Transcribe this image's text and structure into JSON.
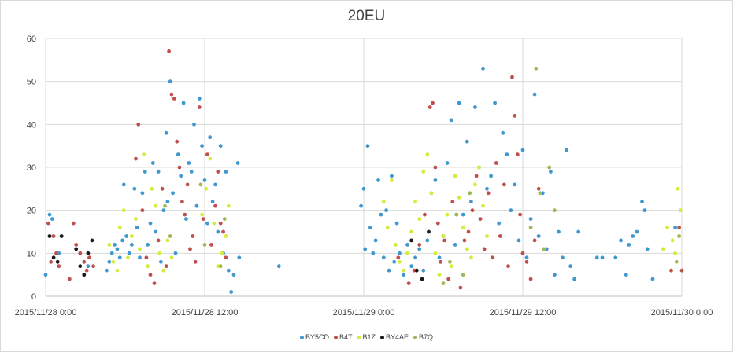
{
  "chart_data": {
    "type": "scatter",
    "title": "20EU",
    "xlabel": "",
    "ylabel": "",
    "ylim": [
      0,
      60
    ],
    "yticks": [
      "0",
      "10",
      "20",
      "30",
      "40",
      "50",
      "60"
    ],
    "xlim": [
      "2015/11/28 0:00",
      "2015/11/30 0:00"
    ],
    "xtick_labels": [
      "2015/11/28 0:00",
      "2015/11/28 12:00",
      "2015/11/29 0:00",
      "2015/11/29 12:00",
      "2015/11/30 0:00"
    ],
    "grid": true,
    "legend_position": "bottom",
    "series": [
      {
        "name": "BY5CD",
        "color": "#4198cf",
        "x_unit": "hours since 2015/11/28 0:00",
        "points": [
          [
            0.0,
            5
          ],
          [
            0.3,
            19
          ],
          [
            0.5,
            18
          ],
          [
            1.0,
            10
          ],
          [
            3.2,
            7
          ],
          [
            4.6,
            6
          ],
          [
            4.8,
            8
          ],
          [
            5.0,
            10
          ],
          [
            5.2,
            12
          ],
          [
            5.4,
            11
          ],
          [
            5.6,
            9
          ],
          [
            5.8,
            13
          ],
          [
            5.9,
            26
          ],
          [
            6.1,
            14
          ],
          [
            6.3,
            10
          ],
          [
            6.5,
            12
          ],
          [
            6.7,
            25
          ],
          [
            6.9,
            16
          ],
          [
            7.1,
            9
          ],
          [
            7.3,
            24
          ],
          [
            7.5,
            29
          ],
          [
            7.7,
            12
          ],
          [
            7.9,
            17
          ],
          [
            8.1,
            31
          ],
          [
            8.3,
            15
          ],
          [
            8.5,
            29
          ],
          [
            8.7,
            8
          ],
          [
            8.9,
            20
          ],
          [
            9.1,
            38
          ],
          [
            9.2,
            22
          ],
          [
            9.4,
            50
          ],
          [
            9.6,
            24
          ],
          [
            9.8,
            10
          ],
          [
            10.0,
            33
          ],
          [
            10.2,
            28
          ],
          [
            10.4,
            45
          ],
          [
            10.6,
            18
          ],
          [
            10.8,
            31
          ],
          [
            11.0,
            29
          ],
          [
            11.2,
            40
          ],
          [
            11.4,
            21
          ],
          [
            11.6,
            46
          ],
          [
            11.8,
            35
          ],
          [
            12.0,
            27
          ],
          [
            12.2,
            17
          ],
          [
            12.4,
            37
          ],
          [
            12.6,
            22
          ],
          [
            12.8,
            26
          ],
          [
            13.0,
            15
          ],
          [
            13.2,
            35
          ],
          [
            13.4,
            10
          ],
          [
            13.6,
            29
          ],
          [
            13.8,
            6
          ],
          [
            14.0,
            1
          ],
          [
            14.2,
            5
          ],
          [
            14.5,
            31
          ],
          [
            14.6,
            9
          ],
          [
            17.6,
            7
          ],
          [
            23.8,
            21
          ],
          [
            24.0,
            25
          ],
          [
            24.1,
            11
          ],
          [
            24.3,
            35
          ],
          [
            24.5,
            16
          ],
          [
            24.7,
            10
          ],
          [
            24.9,
            13
          ],
          [
            25.1,
            27
          ],
          [
            25.3,
            19
          ],
          [
            25.5,
            9
          ],
          [
            25.7,
            20
          ],
          [
            25.9,
            6
          ],
          [
            26.1,
            28
          ],
          [
            26.3,
            8
          ],
          [
            26.5,
            17
          ],
          [
            26.7,
            10
          ],
          [
            27.0,
            5
          ],
          [
            27.3,
            12
          ],
          [
            27.6,
            7
          ],
          [
            27.9,
            9
          ],
          [
            28.2,
            11
          ],
          [
            28.5,
            6
          ],
          [
            28.8,
            13
          ],
          [
            29.1,
            24
          ],
          [
            29.4,
            27
          ],
          [
            29.7,
            9
          ],
          [
            30.0,
            14
          ],
          [
            30.3,
            31
          ],
          [
            30.6,
            41
          ],
          [
            30.9,
            12
          ],
          [
            31.2,
            45
          ],
          [
            31.5,
            19
          ],
          [
            31.8,
            36
          ],
          [
            32.1,
            22
          ],
          [
            32.4,
            44
          ],
          [
            32.7,
            30
          ],
          [
            33.0,
            53
          ],
          [
            33.3,
            25
          ],
          [
            33.6,
            28
          ],
          [
            33.9,
            45
          ],
          [
            34.2,
            17
          ],
          [
            34.5,
            38
          ],
          [
            34.8,
            33
          ],
          [
            35.1,
            20
          ],
          [
            35.4,
            26
          ],
          [
            35.7,
            13
          ],
          [
            36.0,
            34
          ],
          [
            36.3,
            9
          ],
          [
            36.6,
            18
          ],
          [
            36.9,
            47
          ],
          [
            37.2,
            14
          ],
          [
            37.5,
            24
          ],
          [
            37.8,
            11
          ],
          [
            38.1,
            29
          ],
          [
            38.4,
            5
          ],
          [
            38.7,
            15
          ],
          [
            39.0,
            9
          ],
          [
            39.3,
            34
          ],
          [
            39.6,
            7
          ],
          [
            39.9,
            4
          ],
          [
            40.2,
            15
          ],
          [
            41.6,
            9
          ],
          [
            42.0,
            9
          ],
          [
            43.0,
            9
          ],
          [
            43.4,
            13
          ],
          [
            43.8,
            5
          ],
          [
            44.0,
            12
          ],
          [
            44.3,
            14
          ],
          [
            44.6,
            15
          ],
          [
            45.0,
            22
          ],
          [
            45.2,
            20
          ],
          [
            45.4,
            11
          ],
          [
            45.8,
            4
          ],
          [
            47.5,
            16
          ]
        ]
      },
      {
        "name": "B4T",
        "color": "#c0504d",
        "x_unit": "hours since 2015/11/28 0:00",
        "points": [
          [
            0.2,
            17
          ],
          [
            0.4,
            8
          ],
          [
            0.6,
            14
          ],
          [
            0.8,
            10
          ],
          [
            1.0,
            7
          ],
          [
            1.8,
            4
          ],
          [
            2.1,
            17
          ],
          [
            2.3,
            12
          ],
          [
            2.6,
            10
          ],
          [
            2.9,
            8
          ],
          [
            3.1,
            6
          ],
          [
            3.3,
            9
          ],
          [
            3.6,
            7
          ],
          [
            6.8,
            32
          ],
          [
            7.0,
            40
          ],
          [
            7.3,
            20
          ],
          [
            7.6,
            9
          ],
          [
            7.9,
            5
          ],
          [
            8.2,
            3
          ],
          [
            8.5,
            13
          ],
          [
            8.8,
            25
          ],
          [
            9.1,
            7
          ],
          [
            9.3,
            57
          ],
          [
            9.5,
            47
          ],
          [
            9.7,
            46
          ],
          [
            9.9,
            36
          ],
          [
            10.1,
            30
          ],
          [
            10.3,
            22
          ],
          [
            10.5,
            19
          ],
          [
            10.7,
            26
          ],
          [
            10.9,
            11
          ],
          [
            11.1,
            14
          ],
          [
            11.3,
            8
          ],
          [
            11.6,
            44
          ],
          [
            11.9,
            18
          ],
          [
            12.2,
            33
          ],
          [
            12.5,
            12
          ],
          [
            12.8,
            21
          ],
          [
            13.0,
            29
          ],
          [
            13.2,
            17
          ],
          [
            13.4,
            15
          ],
          [
            13.6,
            9
          ],
          [
            26.6,
            9
          ],
          [
            27.4,
            3
          ],
          [
            27.8,
            6
          ],
          [
            28.2,
            12
          ],
          [
            28.6,
            19
          ],
          [
            29.0,
            44
          ],
          [
            29.2,
            45
          ],
          [
            29.4,
            30
          ],
          [
            29.6,
            17
          ],
          [
            29.8,
            8
          ],
          [
            30.1,
            13
          ],
          [
            30.4,
            4
          ],
          [
            30.7,
            22
          ],
          [
            31.0,
            19
          ],
          [
            31.3,
            2
          ],
          [
            31.6,
            13
          ],
          [
            31.9,
            15
          ],
          [
            32.2,
            20
          ],
          [
            32.5,
            28
          ],
          [
            32.8,
            18
          ],
          [
            33.1,
            11
          ],
          [
            33.4,
            24
          ],
          [
            33.7,
            9
          ],
          [
            34.0,
            31
          ],
          [
            34.3,
            14
          ],
          [
            34.6,
            26
          ],
          [
            34.9,
            7
          ],
          [
            35.2,
            51
          ],
          [
            35.4,
            42
          ],
          [
            35.6,
            33
          ],
          [
            35.8,
            19
          ],
          [
            36.0,
            10
          ],
          [
            36.3,
            8
          ],
          [
            36.6,
            4
          ],
          [
            36.9,
            13
          ],
          [
            37.2,
            25
          ],
          [
            47.2,
            6
          ],
          [
            47.8,
            16
          ],
          [
            48.0,
            6
          ]
        ]
      },
      {
        "name": "B1Z",
        "color": "#d6ec3a",
        "x_unit": "hours since 2015/11/28 0:00",
        "points": [
          [
            4.8,
            12
          ],
          [
            5.1,
            8
          ],
          [
            5.4,
            6
          ],
          [
            5.6,
            16
          ],
          [
            5.9,
            20
          ],
          [
            6.2,
            9
          ],
          [
            6.5,
            14
          ],
          [
            6.8,
            18
          ],
          [
            7.1,
            11
          ],
          [
            7.4,
            33
          ],
          [
            7.7,
            7
          ],
          [
            8.0,
            25
          ],
          [
            8.3,
            21
          ],
          [
            8.6,
            10
          ],
          [
            8.9,
            6
          ],
          [
            9.2,
            13
          ],
          [
            9.5,
            9
          ],
          [
            11.8,
            19
          ],
          [
            12.1,
            25
          ],
          [
            12.4,
            32
          ],
          [
            12.7,
            17
          ],
          [
            13.0,
            7
          ],
          [
            13.3,
            10
          ],
          [
            13.6,
            14
          ],
          [
            13.8,
            21
          ],
          [
            25.5,
            22
          ],
          [
            25.8,
            16
          ],
          [
            26.1,
            27
          ],
          [
            26.4,
            12
          ],
          [
            26.7,
            8
          ],
          [
            27.0,
            6
          ],
          [
            27.3,
            10
          ],
          [
            27.6,
            15
          ],
          [
            27.9,
            22
          ],
          [
            28.2,
            18
          ],
          [
            28.5,
            29
          ],
          [
            28.8,
            33
          ],
          [
            29.1,
            24
          ],
          [
            29.4,
            10
          ],
          [
            29.7,
            5
          ],
          [
            30.0,
            14
          ],
          [
            30.3,
            19
          ],
          [
            30.6,
            7
          ],
          [
            30.9,
            28
          ],
          [
            31.2,
            23
          ],
          [
            31.5,
            16
          ],
          [
            31.8,
            11
          ],
          [
            32.1,
            9
          ],
          [
            32.4,
            26
          ],
          [
            32.7,
            30
          ],
          [
            33.0,
            21
          ],
          [
            33.3,
            14
          ],
          [
            46.6,
            11
          ],
          [
            46.9,
            16
          ],
          [
            47.3,
            13
          ],
          [
            47.5,
            10
          ],
          [
            47.7,
            25
          ],
          [
            47.9,
            20
          ]
        ]
      },
      {
        "name": "BY4AE",
        "color": "#1a1a1a",
        "x_unit": "hours since 2015/11/28 0:00",
        "points": [
          [
            0.3,
            14
          ],
          [
            0.6,
            9
          ],
          [
            0.9,
            8
          ],
          [
            1.2,
            14
          ],
          [
            2.3,
            11
          ],
          [
            2.6,
            7
          ],
          [
            2.9,
            5
          ],
          [
            3.2,
            10
          ],
          [
            3.5,
            13
          ],
          [
            27.6,
            13
          ],
          [
            28.0,
            6
          ],
          [
            28.4,
            4
          ],
          [
            28.9,
            15
          ]
        ]
      },
      {
        "name": "B7Q",
        "color": "#9bbb59",
        "x_unit": "hours since 2015/11/28 0:00",
        "points": [
          [
            9.0,
            21
          ],
          [
            9.4,
            14
          ],
          [
            11.7,
            26
          ],
          [
            12.0,
            12
          ],
          [
            13.2,
            7
          ],
          [
            13.5,
            18
          ],
          [
            30.0,
            3
          ],
          [
            30.5,
            8
          ],
          [
            31.0,
            19
          ],
          [
            31.5,
            5
          ],
          [
            32.0,
            24
          ],
          [
            36.6,
            16
          ],
          [
            37.0,
            53
          ],
          [
            37.3,
            24
          ],
          [
            37.6,
            11
          ],
          [
            38.0,
            30
          ],
          [
            38.4,
            20
          ],
          [
            47.6,
            8
          ],
          [
            47.8,
            14
          ]
        ]
      }
    ]
  }
}
